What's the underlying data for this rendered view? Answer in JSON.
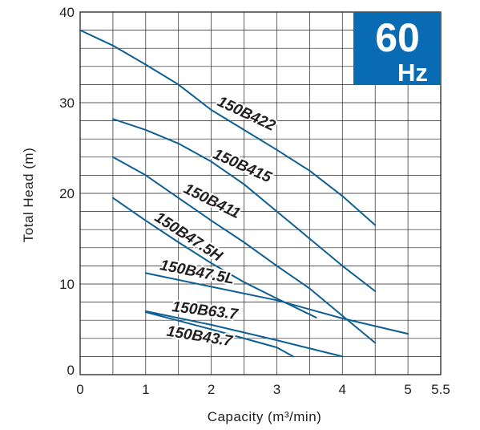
{
  "badge": {
    "frequency": "60",
    "unit": "Hz",
    "color": "#0a6bb5"
  },
  "chart_data": {
    "type": "line",
    "title": "",
    "xlabel": "Capacity (m³/min)",
    "ylabel": "Total Head (m)",
    "xlim": [
      0,
      5.5
    ],
    "ylim": [
      0,
      40
    ],
    "x_ticks": [
      "0",
      "1",
      "2",
      "3",
      "4",
      "5",
      "5.5"
    ],
    "y_ticks": [
      "0",
      "10",
      "20",
      "30",
      "40"
    ],
    "grid": true,
    "line_color": "#0d5f94",
    "series": [
      {
        "name": "150B422",
        "points": [
          [
            0,
            38
          ],
          [
            0.5,
            36.3
          ],
          [
            1,
            34.2
          ],
          [
            1.5,
            32
          ],
          [
            2,
            29.2
          ],
          [
            2.5,
            27
          ],
          [
            3,
            24.8
          ],
          [
            3.5,
            22.5
          ],
          [
            4,
            19.7
          ],
          [
            4.5,
            16.5
          ]
        ]
      },
      {
        "name": "150B415",
        "points": [
          [
            0.5,
            28.2
          ],
          [
            1,
            27
          ],
          [
            1.5,
            25.5
          ],
          [
            2,
            23.5
          ],
          [
            2.5,
            21
          ],
          [
            3,
            18
          ],
          [
            3.5,
            15
          ],
          [
            4,
            12
          ],
          [
            4.5,
            9.2
          ]
        ]
      },
      {
        "name": "150B411",
        "points": [
          [
            0.5,
            24
          ],
          [
            1,
            22
          ],
          [
            1.5,
            19.5
          ],
          [
            2,
            17
          ],
          [
            2.5,
            14.6
          ],
          [
            3,
            12
          ],
          [
            3.5,
            9.5
          ],
          [
            4,
            6.5
          ],
          [
            4.5,
            3.5
          ]
        ]
      },
      {
        "name": "150B47.5H",
        "points": [
          [
            0.5,
            19.5
          ],
          [
            1,
            17
          ],
          [
            1.5,
            14.6
          ],
          [
            2,
            12.3
          ],
          [
            2.5,
            10.2
          ],
          [
            3,
            8.4
          ],
          [
            3.6,
            6.3
          ]
        ]
      },
      {
        "name": "150B47.5L",
        "points": [
          [
            1,
            11.2
          ],
          [
            2,
            9.7
          ],
          [
            3,
            8.2
          ],
          [
            4,
            6.2
          ],
          [
            5,
            4.5
          ]
        ]
      },
      {
        "name": "150B63.7",
        "points": [
          [
            1,
            7
          ],
          [
            2,
            5.5
          ],
          [
            3,
            3.8
          ],
          [
            4,
            2
          ]
        ]
      },
      {
        "name": "150B43.7",
        "points": [
          [
            1,
            6.9
          ],
          [
            2,
            5
          ],
          [
            3,
            3
          ],
          [
            3.25,
            2
          ]
        ]
      }
    ],
    "labels": [
      "150B422",
      "150B415",
      "150B411",
      "150B47.5H",
      "150B47.5L",
      "150B63.7",
      "150B43.7"
    ]
  }
}
